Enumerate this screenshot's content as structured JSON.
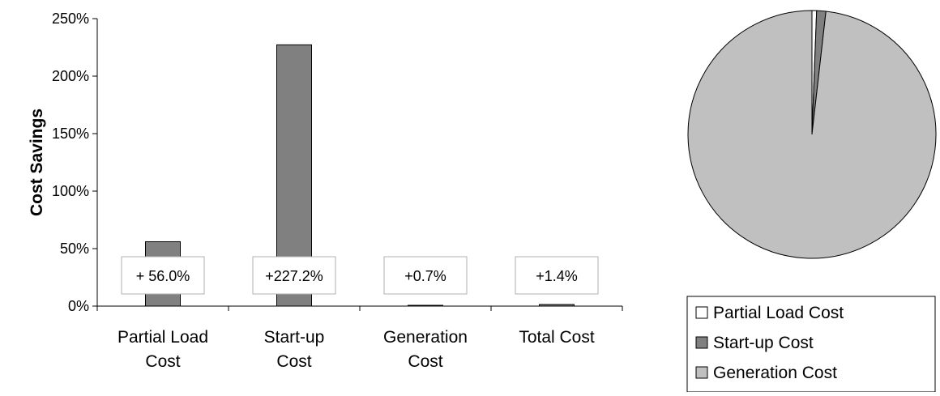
{
  "chart_data": [
    {
      "type": "bar",
      "ylabel": "Cost Savings",
      "ylim": [
        0,
        250
      ],
      "yticks": [
        0,
        50,
        100,
        150,
        200,
        250
      ],
      "ytick_labels": [
        "0%",
        "50%",
        "100%",
        "150%",
        "200%",
        "250%"
      ],
      "categories": [
        [
          "Partial Load",
          "Cost"
        ],
        [
          "Start-up",
          "Cost"
        ],
        [
          "Generation",
          "Cost"
        ],
        [
          "Total Cost"
        ]
      ],
      "values": [
        56.0,
        227.2,
        0.7,
        1.4
      ],
      "data_labels": [
        "+ 56.0%",
        "+227.2%",
        "+0.7%",
        "+1.4%"
      ],
      "bar_color": "#808080",
      "grid": false
    },
    {
      "type": "pie",
      "slices": [
        {
          "name": "Partial Load Cost",
          "value": 0.6,
          "color": "#ffffff"
        },
        {
          "name": "Start-up Cost",
          "value": 1.2,
          "color": "#808080"
        },
        {
          "name": "Generation Cost",
          "value": 98.2,
          "color": "#c0c0c0"
        }
      ],
      "legend_position": "bottom"
    }
  ]
}
